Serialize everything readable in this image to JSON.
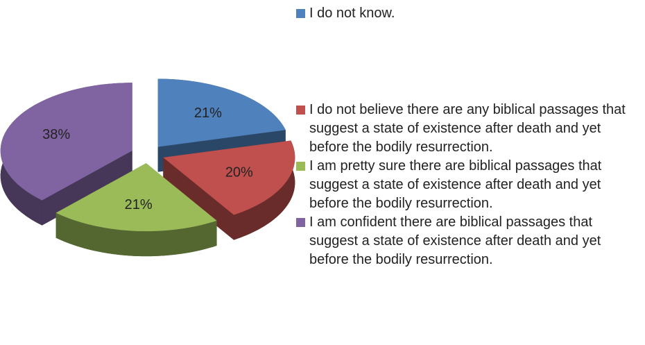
{
  "chart_data": {
    "type": "pie",
    "categories": [
      "I do not know.",
      "I do not believe there are any biblical passages that suggest a state of existence after death and yet before the bodily resurrection.",
      "I am pretty sure there are biblical passages that suggest a state of existence after death and yet before the bodily resurrection.",
      "I am confident there are biblical passages that suggest a state of existence after death and yet before the bodily resurrection."
    ],
    "values": [
      21,
      20,
      21,
      38
    ],
    "value_labels": [
      "21%",
      "20%",
      "21%",
      "38%"
    ],
    "colors": [
      "#4f81bd",
      "#c0504d",
      "#9bbb59",
      "#8064a2"
    ],
    "legend": "right"
  }
}
